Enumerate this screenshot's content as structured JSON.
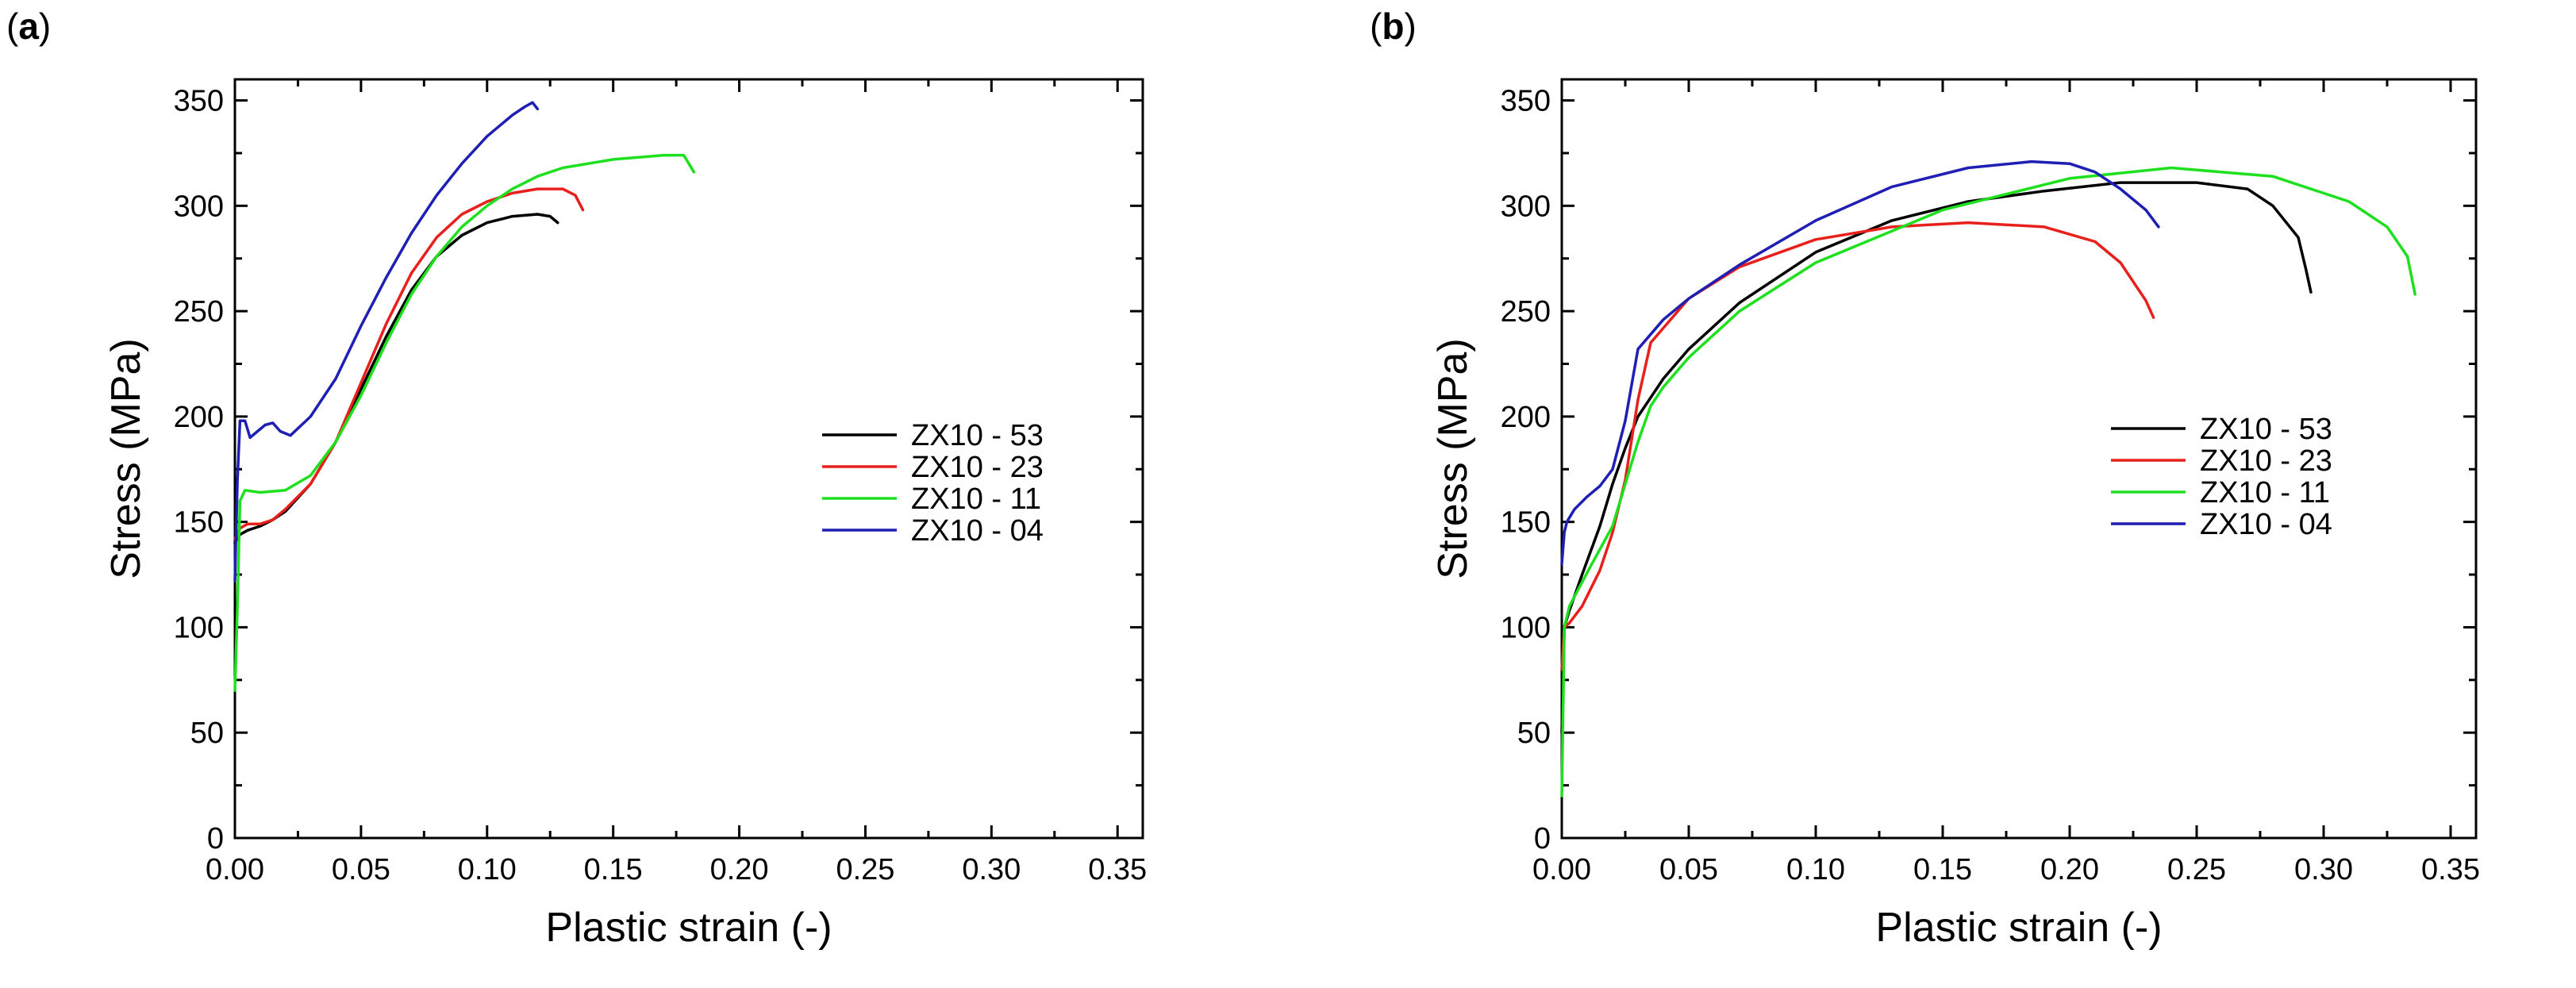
{
  "figure": {
    "panels": [
      {
        "label_open": "(",
        "label_letter": "a",
        "label_close": ")"
      },
      {
        "label_open": "(",
        "label_letter": "b",
        "label_close": ")"
      }
    ]
  },
  "legend_colors": {
    "ZX10 - 53": "#000000",
    "ZX10 - 23": "#e8201c",
    "ZX10 - 11": "#1ee01e",
    "ZX10 - 04": "#1f1fb4"
  },
  "chart_data": [
    {
      "type": "line",
      "panel": "a",
      "title": "",
      "xlabel": "Plastic strain (-)",
      "ylabel": "Stress (MPa)",
      "xlim": [
        0,
        0.36
      ],
      "ylim": [
        0,
        360
      ],
      "xticks": [
        "0.00",
        "0.05",
        "0.10",
        "0.15",
        "0.20",
        "0.25",
        "0.30",
        "0.35"
      ],
      "yticks": [
        "0",
        "50",
        "100",
        "150",
        "200",
        "250",
        "300",
        "350"
      ],
      "legend_position": "center-right",
      "series": [
        {
          "name": "ZX10 - 53",
          "color": "#000000",
          "x": [
            0,
            0.002,
            0.005,
            0.01,
            0.015,
            0.02,
            0.03,
            0.04,
            0.05,
            0.06,
            0.07,
            0.08,
            0.09,
            0.1,
            0.11,
            0.12,
            0.125,
            0.128
          ],
          "y": [
            140,
            144,
            146,
            148,
            151,
            155,
            168,
            188,
            213,
            238,
            260,
            276,
            286,
            292,
            295,
            296,
            295,
            292
          ]
        },
        {
          "name": "ZX10 - 23",
          "color": "#e8201c",
          "x": [
            0,
            0.002,
            0.005,
            0.01,
            0.015,
            0.02,
            0.03,
            0.04,
            0.05,
            0.06,
            0.07,
            0.08,
            0.09,
            0.1,
            0.11,
            0.12,
            0.13,
            0.135,
            0.138
          ],
          "y": [
            142,
            147,
            149,
            149,
            151,
            156,
            168,
            188,
            216,
            244,
            268,
            285,
            296,
            302,
            306,
            308,
            308,
            305,
            298
          ]
        },
        {
          "name": "ZX10 - 11",
          "color": "#1ee01e",
          "x": [
            0,
            0.001,
            0.002,
            0.004,
            0.01,
            0.02,
            0.03,
            0.04,
            0.05,
            0.06,
            0.07,
            0.08,
            0.09,
            0.1,
            0.11,
            0.12,
            0.13,
            0.15,
            0.17,
            0.178,
            0.18,
            0.182
          ],
          "y": [
            70,
            110,
            160,
            165,
            164,
            165,
            172,
            188,
            210,
            235,
            258,
            276,
            290,
            300,
            308,
            314,
            318,
            322,
            324,
            324,
            320,
            316
          ]
        },
        {
          "name": "ZX10 - 04",
          "color": "#1f1fb4",
          "x": [
            0,
            0.001,
            0.002,
            0.004,
            0.006,
            0.008,
            0.012,
            0.015,
            0.018,
            0.022,
            0.03,
            0.04,
            0.05,
            0.06,
            0.07,
            0.08,
            0.09,
            0.1,
            0.11,
            0.115,
            0.118,
            0.12
          ],
          "y": [
            122,
            170,
            198,
            198,
            190,
            192,
            196,
            197,
            193,
            191,
            200,
            218,
            243,
            266,
            287,
            305,
            320,
            333,
            343,
            347,
            349,
            346
          ]
        }
      ]
    },
    {
      "type": "line",
      "panel": "b",
      "title": "",
      "xlabel": "Plastic strain (-)",
      "ylabel": "Stress (MPa)",
      "xlim": [
        0,
        0.36
      ],
      "ylim": [
        0,
        360
      ],
      "xticks": [
        "0.00",
        "0.05",
        "0.10",
        "0.15",
        "0.20",
        "0.25",
        "0.30",
        "0.35"
      ],
      "yticks": [
        "0",
        "50",
        "100",
        "150",
        "200",
        "250",
        "300",
        "350"
      ],
      "legend_position": "center-right",
      "series": [
        {
          "name": "ZX10 - 53",
          "color": "#000000",
          "x": [
            0,
            0.001,
            0.003,
            0.008,
            0.015,
            0.02,
            0.025,
            0.03,
            0.04,
            0.05,
            0.07,
            0.1,
            0.13,
            0.16,
            0.19,
            0.22,
            0.25,
            0.27,
            0.28,
            0.29,
            0.293,
            0.295
          ],
          "y": [
            50,
            100,
            108,
            125,
            148,
            168,
            185,
            200,
            218,
            232,
            254,
            278,
            293,
            302,
            307,
            311,
            311,
            308,
            300,
            285,
            270,
            259
          ]
        },
        {
          "name": "ZX10 - 23",
          "color": "#e8201c",
          "x": [
            0,
            0.001,
            0.003,
            0.008,
            0.015,
            0.02,
            0.025,
            0.03,
            0.035,
            0.05,
            0.07,
            0.1,
            0.13,
            0.16,
            0.19,
            0.21,
            0.22,
            0.23,
            0.233
          ],
          "y": [
            80,
            100,
            102,
            110,
            127,
            145,
            170,
            208,
            235,
            256,
            271,
            284,
            290,
            292,
            290,
            283,
            273,
            255,
            247
          ]
        },
        {
          "name": "ZX10 - 11",
          "color": "#1ee01e",
          "x": [
            0,
            0.001,
            0.003,
            0.01,
            0.02,
            0.025,
            0.03,
            0.035,
            0.04,
            0.05,
            0.07,
            0.1,
            0.15,
            0.2,
            0.24,
            0.28,
            0.31,
            0.325,
            0.333,
            0.336
          ],
          "y": [
            20,
            100,
            110,
            126,
            148,
            168,
            188,
            205,
            214,
            228,
            250,
            273,
            298,
            313,
            318,
            314,
            302,
            290,
            276,
            258
          ]
        },
        {
          "name": "ZX10 - 04",
          "color": "#1f1fb4",
          "x": [
            0,
            0.001,
            0.002,
            0.005,
            0.01,
            0.015,
            0.02,
            0.025,
            0.03,
            0.04,
            0.05,
            0.07,
            0.1,
            0.13,
            0.16,
            0.185,
            0.2,
            0.21,
            0.22,
            0.23,
            0.235
          ],
          "y": [
            130,
            145,
            150,
            156,
            162,
            167,
            175,
            198,
            232,
            246,
            256,
            272,
            293,
            309,
            318,
            321,
            320,
            316,
            308,
            298,
            290
          ]
        }
      ]
    }
  ]
}
